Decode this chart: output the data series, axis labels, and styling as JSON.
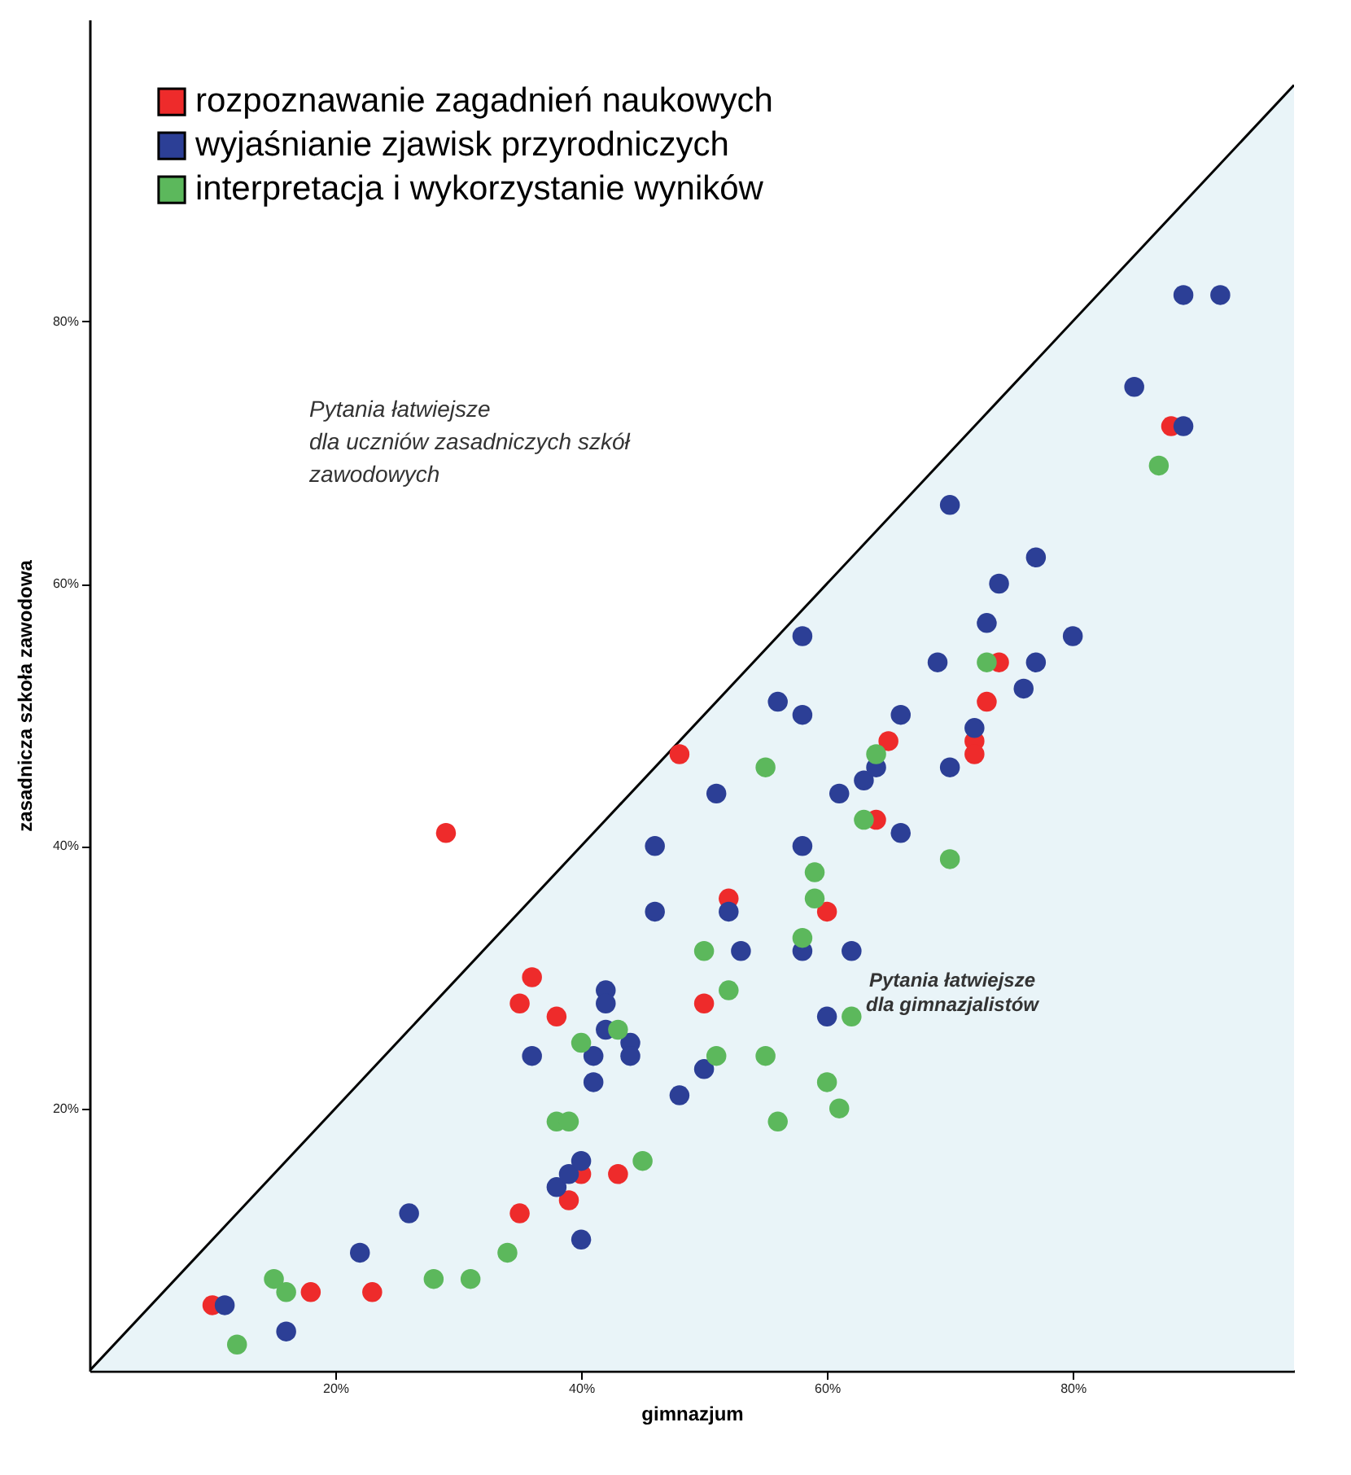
{
  "chart_data": {
    "type": "scatter",
    "xlabel": "gimnazjum",
    "ylabel": "zasadnicza szkoła zawodowa",
    "xlim": [
      0,
      98
    ],
    "ylim": [
      0,
      103
    ],
    "xticks": [
      {
        "value": 20,
        "label": "20%"
      },
      {
        "value": 40,
        "label": "40%"
      },
      {
        "value": 60,
        "label": "60%"
      },
      {
        "value": 80,
        "label": "80%"
      }
    ],
    "yticks": [
      {
        "value": 20,
        "label": "20%"
      },
      {
        "value": 40,
        "label": "40%"
      },
      {
        "value": 60,
        "label": "60%"
      },
      {
        "value": 80,
        "label": "80%"
      }
    ],
    "grid": false,
    "legend": "top left",
    "annotations": [
      "Pytania łatwiejsze\ndla uczniów zasadniczych szkół\nzawodowych",
      "Pytania łatwiejsze\ndla gimnazjalistów"
    ],
    "series": [
      {
        "type": "area",
        "color": "#dff0f5",
        "x": [
          0,
          98
        ],
        "values": [
          0,
          98
        ]
      },
      {
        "name": "rozpoznawanie zagadnień naukowych",
        "color": "#ee2b2b",
        "marker": "circle",
        "x": [
          10,
          18,
          23,
          29,
          35,
          35,
          36,
          38,
          39,
          40,
          43,
          48,
          50,
          52,
          60,
          64,
          65,
          72,
          72,
          73,
          74,
          88
        ],
        "values": [
          5,
          6,
          6,
          41,
          12,
          28,
          30,
          27,
          13,
          15,
          15,
          47,
          28,
          36,
          35,
          42,
          48,
          48,
          47,
          51,
          54,
          72
        ]
      },
      {
        "name": "wyjaśnianie zjawisk przyrodniczych",
        "color": "#2c3f96",
        "marker": "circle",
        "x": [
          11,
          16,
          22,
          26,
          36,
          38,
          39,
          40,
          40,
          41,
          41,
          42,
          42,
          42,
          44,
          44,
          46,
          46,
          48,
          50,
          51,
          52,
          53,
          56,
          58,
          58,
          58,
          58,
          60,
          61,
          62,
          63,
          64,
          66,
          66,
          69,
          70,
          70,
          72,
          73,
          74,
          76,
          77,
          77,
          80,
          85,
          89,
          89,
          92
        ],
        "values": [
          5,
          3,
          9,
          12,
          24,
          14,
          15,
          16,
          10,
          24,
          22,
          29,
          28,
          26,
          25,
          24,
          35,
          40,
          21,
          23,
          44,
          35,
          32,
          51,
          32,
          40,
          50,
          56,
          27,
          44,
          32,
          45,
          46,
          50,
          41,
          54,
          46,
          66,
          49,
          57,
          60,
          52,
          54,
          62,
          56,
          75,
          72,
          82,
          82
        ]
      },
      {
        "name": "interpretacja i wykorzystanie wyników",
        "color": "#5cb85c",
        "marker": "circle",
        "x": [
          12,
          15,
          16,
          28,
          31,
          34,
          38,
          39,
          40,
          43,
          45,
          50,
          51,
          52,
          55,
          55,
          56,
          58,
          59,
          59,
          60,
          61,
          62,
          63,
          64,
          70,
          73,
          87
        ],
        "values": [
          2,
          7,
          6,
          7,
          7,
          9,
          19,
          19,
          25,
          26,
          16,
          32,
          24,
          29,
          46,
          24,
          19,
          33,
          38,
          36,
          22,
          20,
          27,
          42,
          47,
          39,
          54,
          69
        ]
      }
    ]
  }
}
